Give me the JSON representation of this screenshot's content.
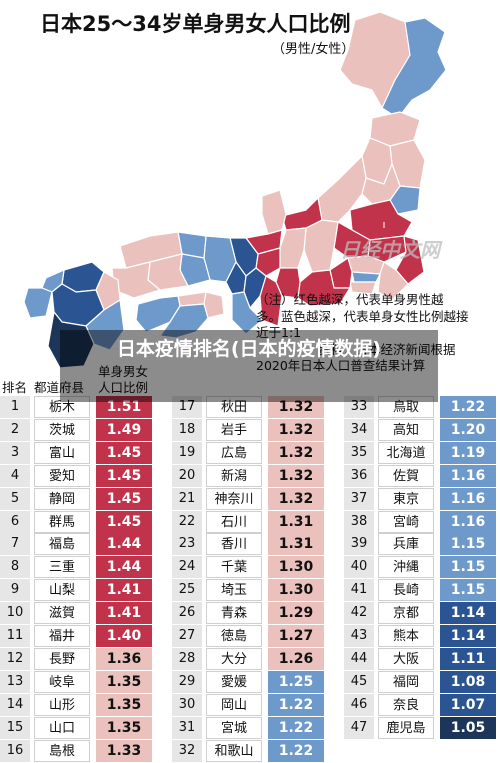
{
  "title": "日本25～34岁单身男女人口比例",
  "subtitle": "（男性/女性）",
  "note": [
    "（注）红色越深，代表单身男性越",
    "多。蓝色越深，代表单身女性比例越接",
    "近于1:1",
    "资料：日本经济新闻根据",
    "2020年日本人口普查结果计算"
  ],
  "watermark": "日经中文网",
  "overlay_title": "日本疫情排名(日本的疫情数据)",
  "header": {
    "rank": "排名",
    "pref": "都道府县",
    "ratio_line1": "单身男女",
    "ratio_line2": "人口比例"
  },
  "colors": {
    "red": "#c1334b",
    "pink": "#ebc1bd",
    "light_blue": "#6d99cb",
    "blue": "#2b5592",
    "navy": "#1d3558"
  },
  "columns": [
    [
      {
        "rank": "1",
        "pref": "栃木",
        "value": "1.51",
        "tone": "red"
      },
      {
        "rank": "2",
        "pref": "茨城",
        "value": "1.49",
        "tone": "red"
      },
      {
        "rank": "3",
        "pref": "富山",
        "value": "1.45",
        "tone": "red"
      },
      {
        "rank": "4",
        "pref": "愛知",
        "value": "1.45",
        "tone": "red"
      },
      {
        "rank": "5",
        "pref": "静岡",
        "value": "1.45",
        "tone": "red"
      },
      {
        "rank": "6",
        "pref": "群馬",
        "value": "1.45",
        "tone": "red"
      },
      {
        "rank": "7",
        "pref": "福島",
        "value": "1.44",
        "tone": "red"
      },
      {
        "rank": "8",
        "pref": "三重",
        "value": "1.44",
        "tone": "red"
      },
      {
        "rank": "9",
        "pref": "山梨",
        "value": "1.41",
        "tone": "red"
      },
      {
        "rank": "10",
        "pref": "滋賀",
        "value": "1.41",
        "tone": "red"
      },
      {
        "rank": "11",
        "pref": "福井",
        "value": "1.40",
        "tone": "red"
      },
      {
        "rank": "12",
        "pref": "長野",
        "value": "1.36",
        "tone": "pink"
      },
      {
        "rank": "13",
        "pref": "岐阜",
        "value": "1.35",
        "tone": "pink"
      },
      {
        "rank": "14",
        "pref": "山形",
        "value": "1.35",
        "tone": "pink"
      },
      {
        "rank": "15",
        "pref": "山口",
        "value": "1.35",
        "tone": "pink"
      },
      {
        "rank": "16",
        "pref": "島根",
        "value": "1.33",
        "tone": "pink"
      }
    ],
    [
      {
        "rank": "17",
        "pref": "秋田",
        "value": "1.32",
        "tone": "pink"
      },
      {
        "rank": "18",
        "pref": "岩手",
        "value": "1.32",
        "tone": "pink"
      },
      {
        "rank": "19",
        "pref": "広島",
        "value": "1.32",
        "tone": "pink"
      },
      {
        "rank": "20",
        "pref": "新潟",
        "value": "1.32",
        "tone": "pink"
      },
      {
        "rank": "21",
        "pref": "神奈川",
        "value": "1.32",
        "tone": "pink"
      },
      {
        "rank": "22",
        "pref": "石川",
        "value": "1.31",
        "tone": "pink"
      },
      {
        "rank": "23",
        "pref": "香川",
        "value": "1.31",
        "tone": "pink"
      },
      {
        "rank": "24",
        "pref": "千葉",
        "value": "1.30",
        "tone": "pink"
      },
      {
        "rank": "25",
        "pref": "埼玉",
        "value": "1.30",
        "tone": "pink"
      },
      {
        "rank": "26",
        "pref": "青森",
        "value": "1.29",
        "tone": "pink"
      },
      {
        "rank": "27",
        "pref": "徳島",
        "value": "1.27",
        "tone": "pink"
      },
      {
        "rank": "28",
        "pref": "大分",
        "value": "1.26",
        "tone": "pink"
      },
      {
        "rank": "29",
        "pref": "愛媛",
        "value": "1.25",
        "tone": "light_blue"
      },
      {
        "rank": "30",
        "pref": "岡山",
        "value": "1.22",
        "tone": "light_blue"
      },
      {
        "rank": "31",
        "pref": "宮城",
        "value": "1.22",
        "tone": "light_blue"
      },
      {
        "rank": "32",
        "pref": "和歌山",
        "value": "1.22",
        "tone": "light_blue"
      }
    ],
    [
      {
        "rank": "33",
        "pref": "鳥取",
        "value": "1.22",
        "tone": "light_blue"
      },
      {
        "rank": "34",
        "pref": "高知",
        "value": "1.20",
        "tone": "light_blue"
      },
      {
        "rank": "35",
        "pref": "北海道",
        "value": "1.19",
        "tone": "light_blue"
      },
      {
        "rank": "36",
        "pref": "佐賀",
        "value": "1.16",
        "tone": "light_blue"
      },
      {
        "rank": "37",
        "pref": "東京",
        "value": "1.16",
        "tone": "light_blue"
      },
      {
        "rank": "38",
        "pref": "宮崎",
        "value": "1.16",
        "tone": "light_blue"
      },
      {
        "rank": "39",
        "pref": "兵庫",
        "value": "1.15",
        "tone": "light_blue"
      },
      {
        "rank": "40",
        "pref": "沖縄",
        "value": "1.15",
        "tone": "light_blue"
      },
      {
        "rank": "41",
        "pref": "長崎",
        "value": "1.15",
        "tone": "light_blue"
      },
      {
        "rank": "42",
        "pref": "京都",
        "value": "1.14",
        "tone": "blue"
      },
      {
        "rank": "43",
        "pref": "熊本",
        "value": "1.14",
        "tone": "blue"
      },
      {
        "rank": "44",
        "pref": "大阪",
        "value": "1.11",
        "tone": "blue"
      },
      {
        "rank": "45",
        "pref": "福岡",
        "value": "1.08",
        "tone": "blue"
      },
      {
        "rank": "46",
        "pref": "奈良",
        "value": "1.07",
        "tone": "blue"
      },
      {
        "rank": "47",
        "pref": "鹿児島",
        "value": "1.05",
        "tone": "navy"
      }
    ]
  ]
}
